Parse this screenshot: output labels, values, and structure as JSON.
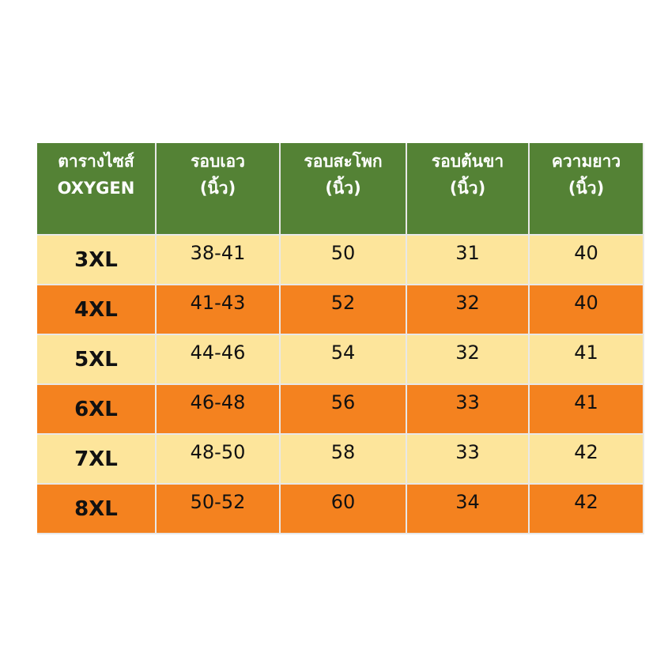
{
  "table": {
    "header": [
      [
        "ตารางไซส์",
        "OXYGEN"
      ],
      [
        "รอบเอว",
        "(นิ้ว)"
      ],
      [
        "รอบสะโพก",
        "(นิ้ว)"
      ],
      [
        "รอบต้นขา",
        "(นิ้ว)"
      ],
      [
        "ความยาว",
        "(นิ้ว)"
      ]
    ],
    "rows": [
      [
        "3XL",
        "38-41",
        "50",
        "31",
        "40"
      ],
      [
        "4XL",
        "41-43",
        "52",
        "32",
        "40"
      ],
      [
        "5XL",
        "44-46",
        "54",
        "32",
        "41"
      ],
      [
        "6XL",
        "46-48",
        "56",
        "33",
        "41"
      ],
      [
        "7XL",
        "48-50",
        "58",
        "33",
        "42"
      ],
      [
        "8XL",
        "50-52",
        "60",
        "34",
        "42"
      ]
    ]
  }
}
